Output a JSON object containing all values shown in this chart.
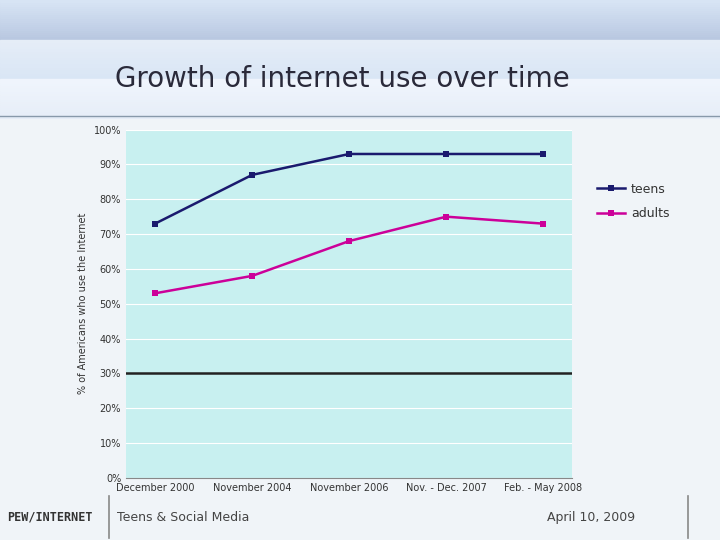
{
  "title": "Growth of internet use over time",
  "ylabel": "% of Americans who use the Internet",
  "x_labels": [
    "December 2000",
    "November 2004",
    "November 2006",
    "Nov. - Dec. 2007",
    "Feb. - May 2008"
  ],
  "teens_values": [
    73,
    87,
    93,
    93,
    93
  ],
  "adults_values": [
    53,
    58,
    68,
    75,
    73
  ],
  "teens_color": "#1a1a6e",
  "adults_color": "#cc0099",
  "plot_bg_color": "#c8f0f0",
  "outer_bg_color": "#f0f4f8",
  "title_bg_top": "#b8cce4",
  "title_bg_bottom": "#dce9f5",
  "footer_bg_color": "#d4d4d4",
  "footer_text_left": "Teens & Social Media",
  "footer_text_right": "April 10, 2009",
  "footer_logo": "PEW/INTERNET",
  "ylim": [
    0,
    100
  ],
  "yticks": [
    0,
    10,
    20,
    30,
    40,
    50,
    60,
    70,
    80,
    90,
    100
  ],
  "hline_y": 30,
  "legend_teens": "teens",
  "legend_adults": "adults",
  "title_fontsize": 20,
  "tick_fontsize": 7,
  "ylabel_fontsize": 7
}
